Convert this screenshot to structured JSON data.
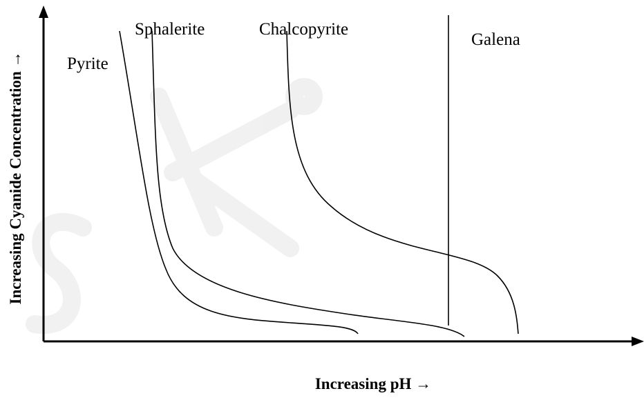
{
  "x_axis_label": "Increasing pH →",
  "y_axis_label": "Increasing Cyanide Concentration →",
  "curves": [
    {
      "label": "Pyrite"
    },
    {
      "label": "Sphalerite"
    },
    {
      "label": "Chalcopyrite"
    },
    {
      "label": "Galena"
    }
  ]
}
